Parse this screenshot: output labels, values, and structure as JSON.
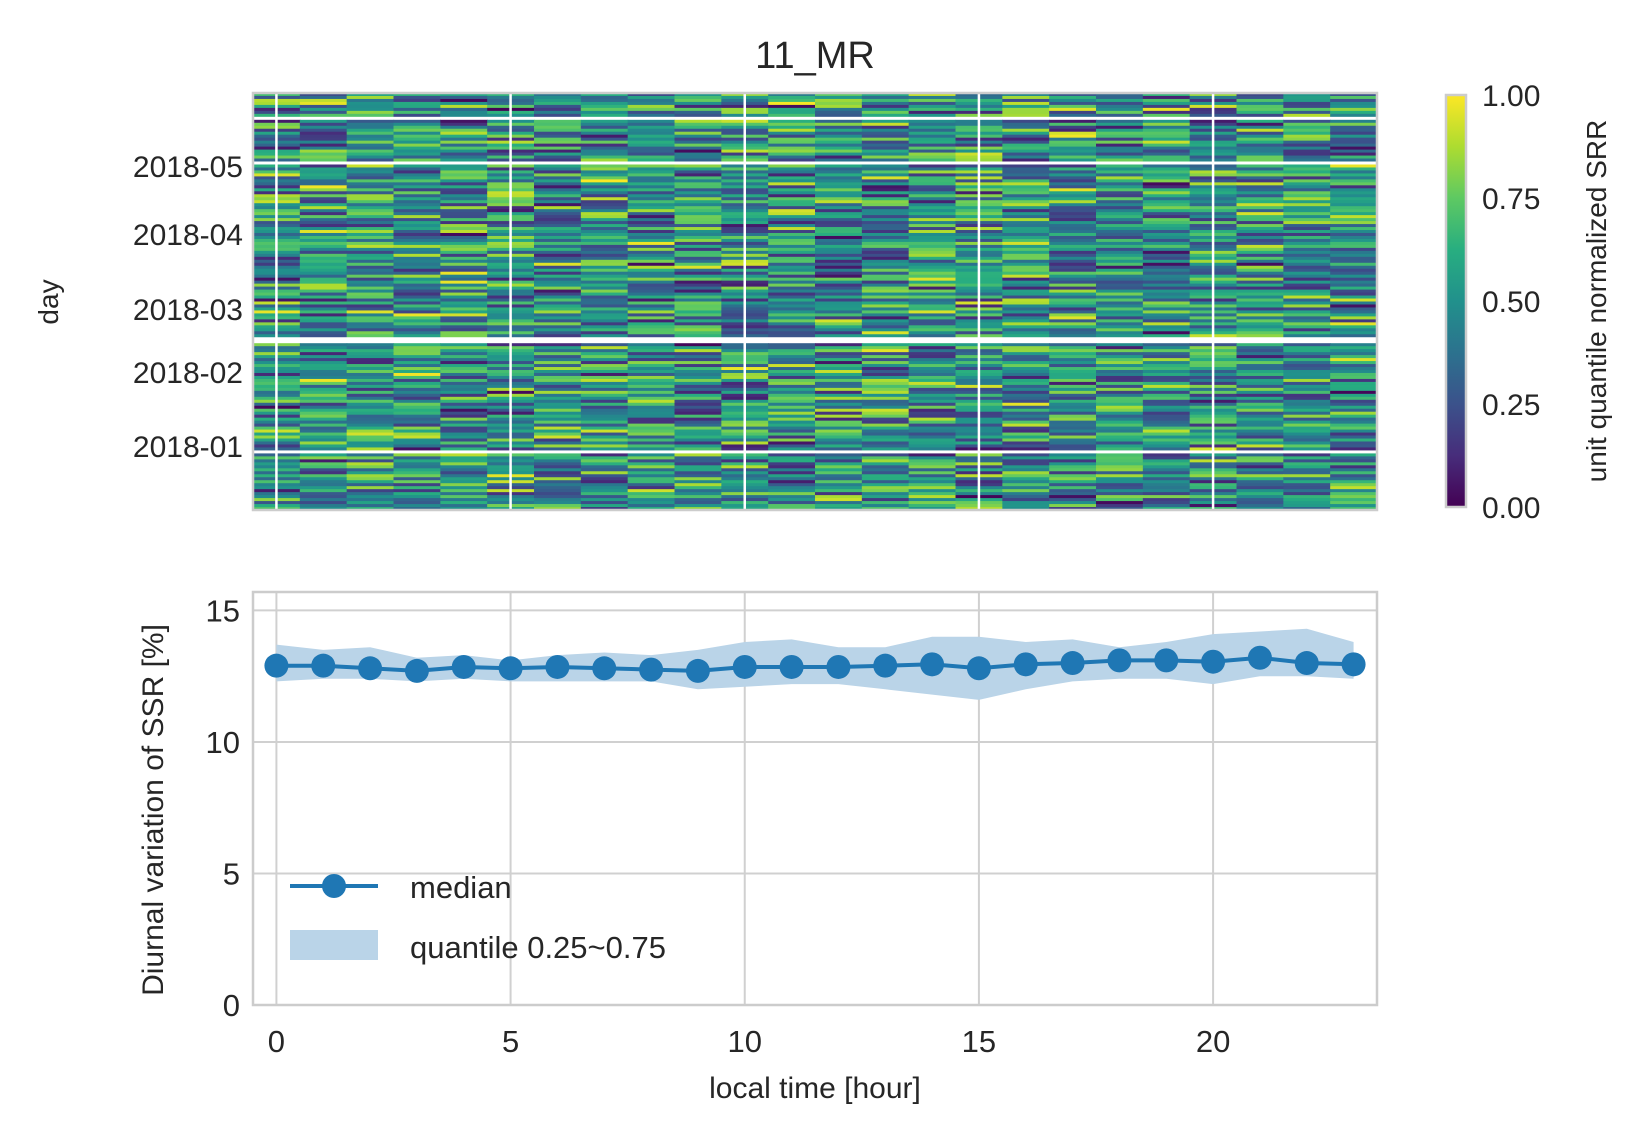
{
  "chart_data": [
    {
      "type": "heatmap",
      "title": "11_MR",
      "ylabel": "day",
      "xlabel": "",
      "y_tick_labels": [
        "2018-05",
        "2018-04",
        "2018-03",
        "2018-02",
        "2018-01"
      ],
      "x_range": [
        -0.5,
        23.5
      ],
      "colormap": "viridis",
      "colorbar": {
        "label": "unit quantile normalized SRR",
        "ticks": [
          "1.00",
          "0.75",
          "0.50",
          "0.25",
          "0.00"
        ],
        "range": [
          0,
          1
        ]
      },
      "grid": true
    },
    {
      "type": "line",
      "xlabel": "local time [hour]",
      "ylabel": "Diurnal variation of SSR [%]",
      "xlim": [
        -0.5,
        23.5
      ],
      "ylim": [
        0,
        15.7
      ],
      "x_ticks": [
        0,
        5,
        10,
        15,
        20
      ],
      "y_ticks": [
        0,
        5,
        10,
        15
      ],
      "grid": true,
      "legend_position": "lower-left",
      "x": [
        0,
        1,
        2,
        3,
        4,
        5,
        6,
        7,
        8,
        9,
        10,
        11,
        12,
        13,
        14,
        15,
        16,
        17,
        18,
        19,
        20,
        21,
        22,
        23
      ],
      "series": [
        {
          "name": "median",
          "color": "#1f77b4",
          "values": [
            12.9,
            12.9,
            12.8,
            12.7,
            12.85,
            12.8,
            12.85,
            12.8,
            12.75,
            12.7,
            12.85,
            12.85,
            12.85,
            12.9,
            12.95,
            12.8,
            12.95,
            13.0,
            13.1,
            13.1,
            13.05,
            13.2,
            13.0,
            12.95
          ]
        },
        {
          "name": "quantile 0.25~0.75",
          "color": "#bad4e8",
          "lower": [
            12.3,
            12.4,
            12.4,
            12.3,
            12.4,
            12.3,
            12.3,
            12.3,
            12.3,
            12.0,
            12.1,
            12.2,
            12.2,
            12.0,
            11.8,
            11.6,
            12.0,
            12.3,
            12.4,
            12.4,
            12.2,
            12.5,
            12.5,
            12.4
          ],
          "upper": [
            13.7,
            13.5,
            13.6,
            13.2,
            13.3,
            13.1,
            13.3,
            13.4,
            13.3,
            13.5,
            13.8,
            13.9,
            13.6,
            13.6,
            14.0,
            14.0,
            13.8,
            13.9,
            13.6,
            13.8,
            14.1,
            14.2,
            14.3,
            13.8
          ]
        }
      ]
    }
  ]
}
